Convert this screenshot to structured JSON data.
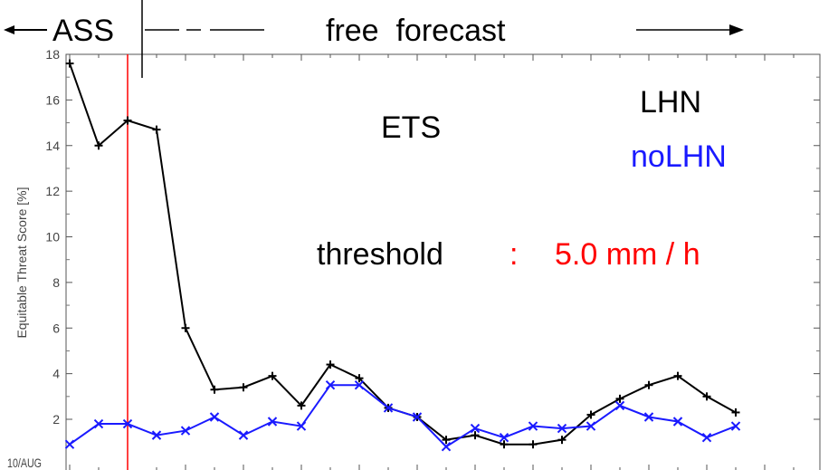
{
  "annotations": {
    "assimilation": "ASS",
    "free_forecast": "free  forecast",
    "score_name": "ETS",
    "threshold_label": "threshold",
    "threshold_colon": ":",
    "threshold_value": "5.0 mm / h",
    "bottom_left_label": "10/AUG"
  },
  "colors": {
    "lhn": "#000000",
    "nolhn": "#1a1aff",
    "threshold_value": "#ff0000",
    "vertical_marker": "#ff0000"
  },
  "chart_data": {
    "type": "line",
    "ylabel": "Equitable Threat Score [%]",
    "ylim": [
      1,
      18
    ],
    "xlim": [
      0,
      26
    ],
    "yticks": [
      2,
      4,
      6,
      8,
      10,
      12,
      14,
      16,
      18
    ],
    "vertical_marker_x": 2,
    "grid": false,
    "legend": "top-right",
    "x": [
      0,
      1,
      2,
      3,
      4,
      5,
      6,
      7,
      8,
      9,
      10,
      11,
      12,
      13,
      14,
      15,
      16,
      17,
      18,
      19,
      20,
      21,
      22,
      23
    ],
    "series": [
      {
        "name": "LHN",
        "marker": "plus",
        "values": [
          17.6,
          14.0,
          15.1,
          14.7,
          6.0,
          3.3,
          3.4,
          3.9,
          2.6,
          4.4,
          3.8,
          2.5,
          2.1,
          1.1,
          1.3,
          0.9,
          0.9,
          1.1,
          2.2,
          2.9,
          3.5,
          3.9,
          3.0,
          2.3
        ]
      },
      {
        "name": "noLHN",
        "marker": "x",
        "values": [
          0.9,
          1.8,
          1.8,
          1.3,
          1.5,
          2.1,
          1.3,
          1.9,
          1.7,
          3.5,
          3.5,
          2.5,
          2.1,
          0.8,
          1.6,
          1.2,
          1.7,
          1.6,
          1.7,
          2.6,
          2.1,
          1.9,
          1.2,
          1.7
        ]
      }
    ]
  }
}
